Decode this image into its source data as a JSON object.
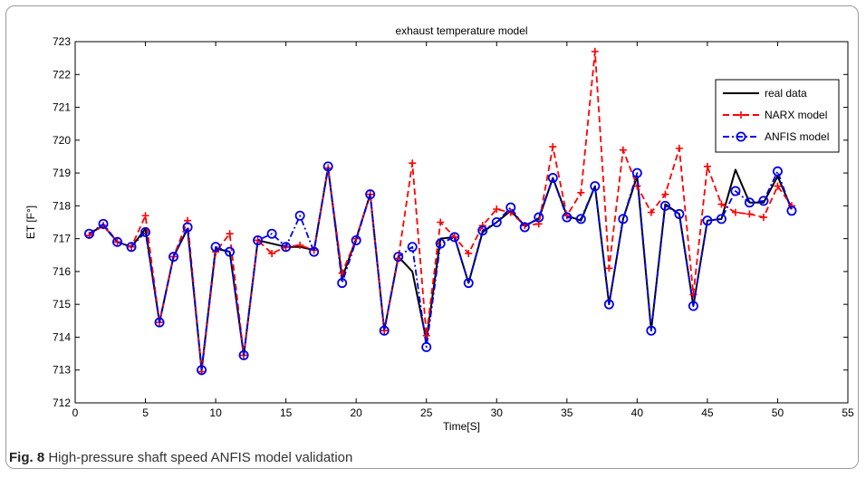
{
  "caption": {
    "label": "Fig. 8",
    "text": "High-pressure shaft speed ANFIS model validation"
  },
  "chart_data": {
    "type": "line",
    "title": "exhaust  temperature model",
    "xlabel": "Time[S]",
    "ylabel": "ET [F°]",
    "xlim": [
      0,
      55
    ],
    "ylim": [
      712,
      723
    ],
    "xticks": [
      0,
      5,
      10,
      15,
      20,
      25,
      30,
      35,
      40,
      45,
      50,
      55
    ],
    "yticks": [
      712,
      713,
      714,
      715,
      716,
      717,
      718,
      719,
      720,
      721,
      722,
      723
    ],
    "grid": false,
    "legend_position": "top-right",
    "x": [
      1,
      2,
      3,
      4,
      5,
      6,
      7,
      8,
      9,
      10,
      11,
      12,
      13,
      14,
      15,
      16,
      17,
      18,
      19,
      20,
      21,
      22,
      23,
      24,
      25,
      26,
      27,
      28,
      29,
      30,
      31,
      32,
      33,
      34,
      35,
      36,
      37,
      38,
      39,
      40,
      41,
      42,
      43,
      44,
      45,
      46,
      47,
      48,
      49,
      50,
      51
    ],
    "series": [
      {
        "name": "real data",
        "color": "#000000",
        "style": "solid",
        "marker": "none",
        "values": [
          717.15,
          717.4,
          716.9,
          716.75,
          717.3,
          714.45,
          716.45,
          717.3,
          713.0,
          716.7,
          716.6,
          713.45,
          716.95,
          716.85,
          716.75,
          716.75,
          716.65,
          719.15,
          715.8,
          717.0,
          718.35,
          714.2,
          716.45,
          716.0,
          713.9,
          717.0,
          717.05,
          715.65,
          717.2,
          717.5,
          717.85,
          717.4,
          717.6,
          718.85,
          717.7,
          717.55,
          718.6,
          715.0,
          717.6,
          718.9,
          714.2,
          718.05,
          717.75,
          714.95,
          717.55,
          717.6,
          719.1,
          718.1,
          718.1,
          718.9,
          717.9
        ]
      },
      {
        "name": "NARX model",
        "color": "#ff0000",
        "style": "dashed",
        "marker": "plus",
        "values": [
          717.1,
          717.4,
          716.9,
          716.75,
          717.7,
          714.45,
          716.45,
          717.55,
          712.95,
          716.6,
          717.15,
          713.45,
          716.95,
          716.55,
          716.75,
          716.8,
          716.65,
          719.15,
          715.95,
          717.0,
          718.35,
          714.2,
          716.4,
          719.3,
          714.05,
          717.5,
          717.05,
          716.55,
          717.4,
          717.9,
          717.8,
          717.4,
          717.45,
          719.8,
          717.7,
          718.4,
          722.7,
          716.1,
          719.7,
          718.6,
          717.8,
          718.35,
          719.75,
          715.3,
          719.2,
          718.05,
          717.8,
          717.75,
          717.65,
          718.6,
          718.0
        ]
      },
      {
        "name": "ANFIS model",
        "color": "#0000ee",
        "style": "dashdot",
        "marker": "circle",
        "values": [
          717.15,
          717.45,
          716.9,
          716.75,
          717.2,
          714.45,
          716.45,
          717.35,
          713.0,
          716.75,
          716.6,
          713.45,
          716.95,
          717.15,
          716.75,
          717.7,
          716.6,
          719.2,
          715.65,
          716.95,
          718.35,
          714.2,
          716.45,
          716.75,
          713.7,
          716.85,
          717.05,
          715.65,
          717.25,
          717.5,
          717.95,
          717.35,
          717.65,
          718.85,
          717.65,
          717.6,
          718.6,
          715.0,
          717.6,
          719.0,
          714.2,
          718.0,
          717.75,
          714.95,
          717.55,
          717.6,
          718.45,
          718.1,
          718.15,
          719.05,
          717.85
        ]
      }
    ]
  }
}
